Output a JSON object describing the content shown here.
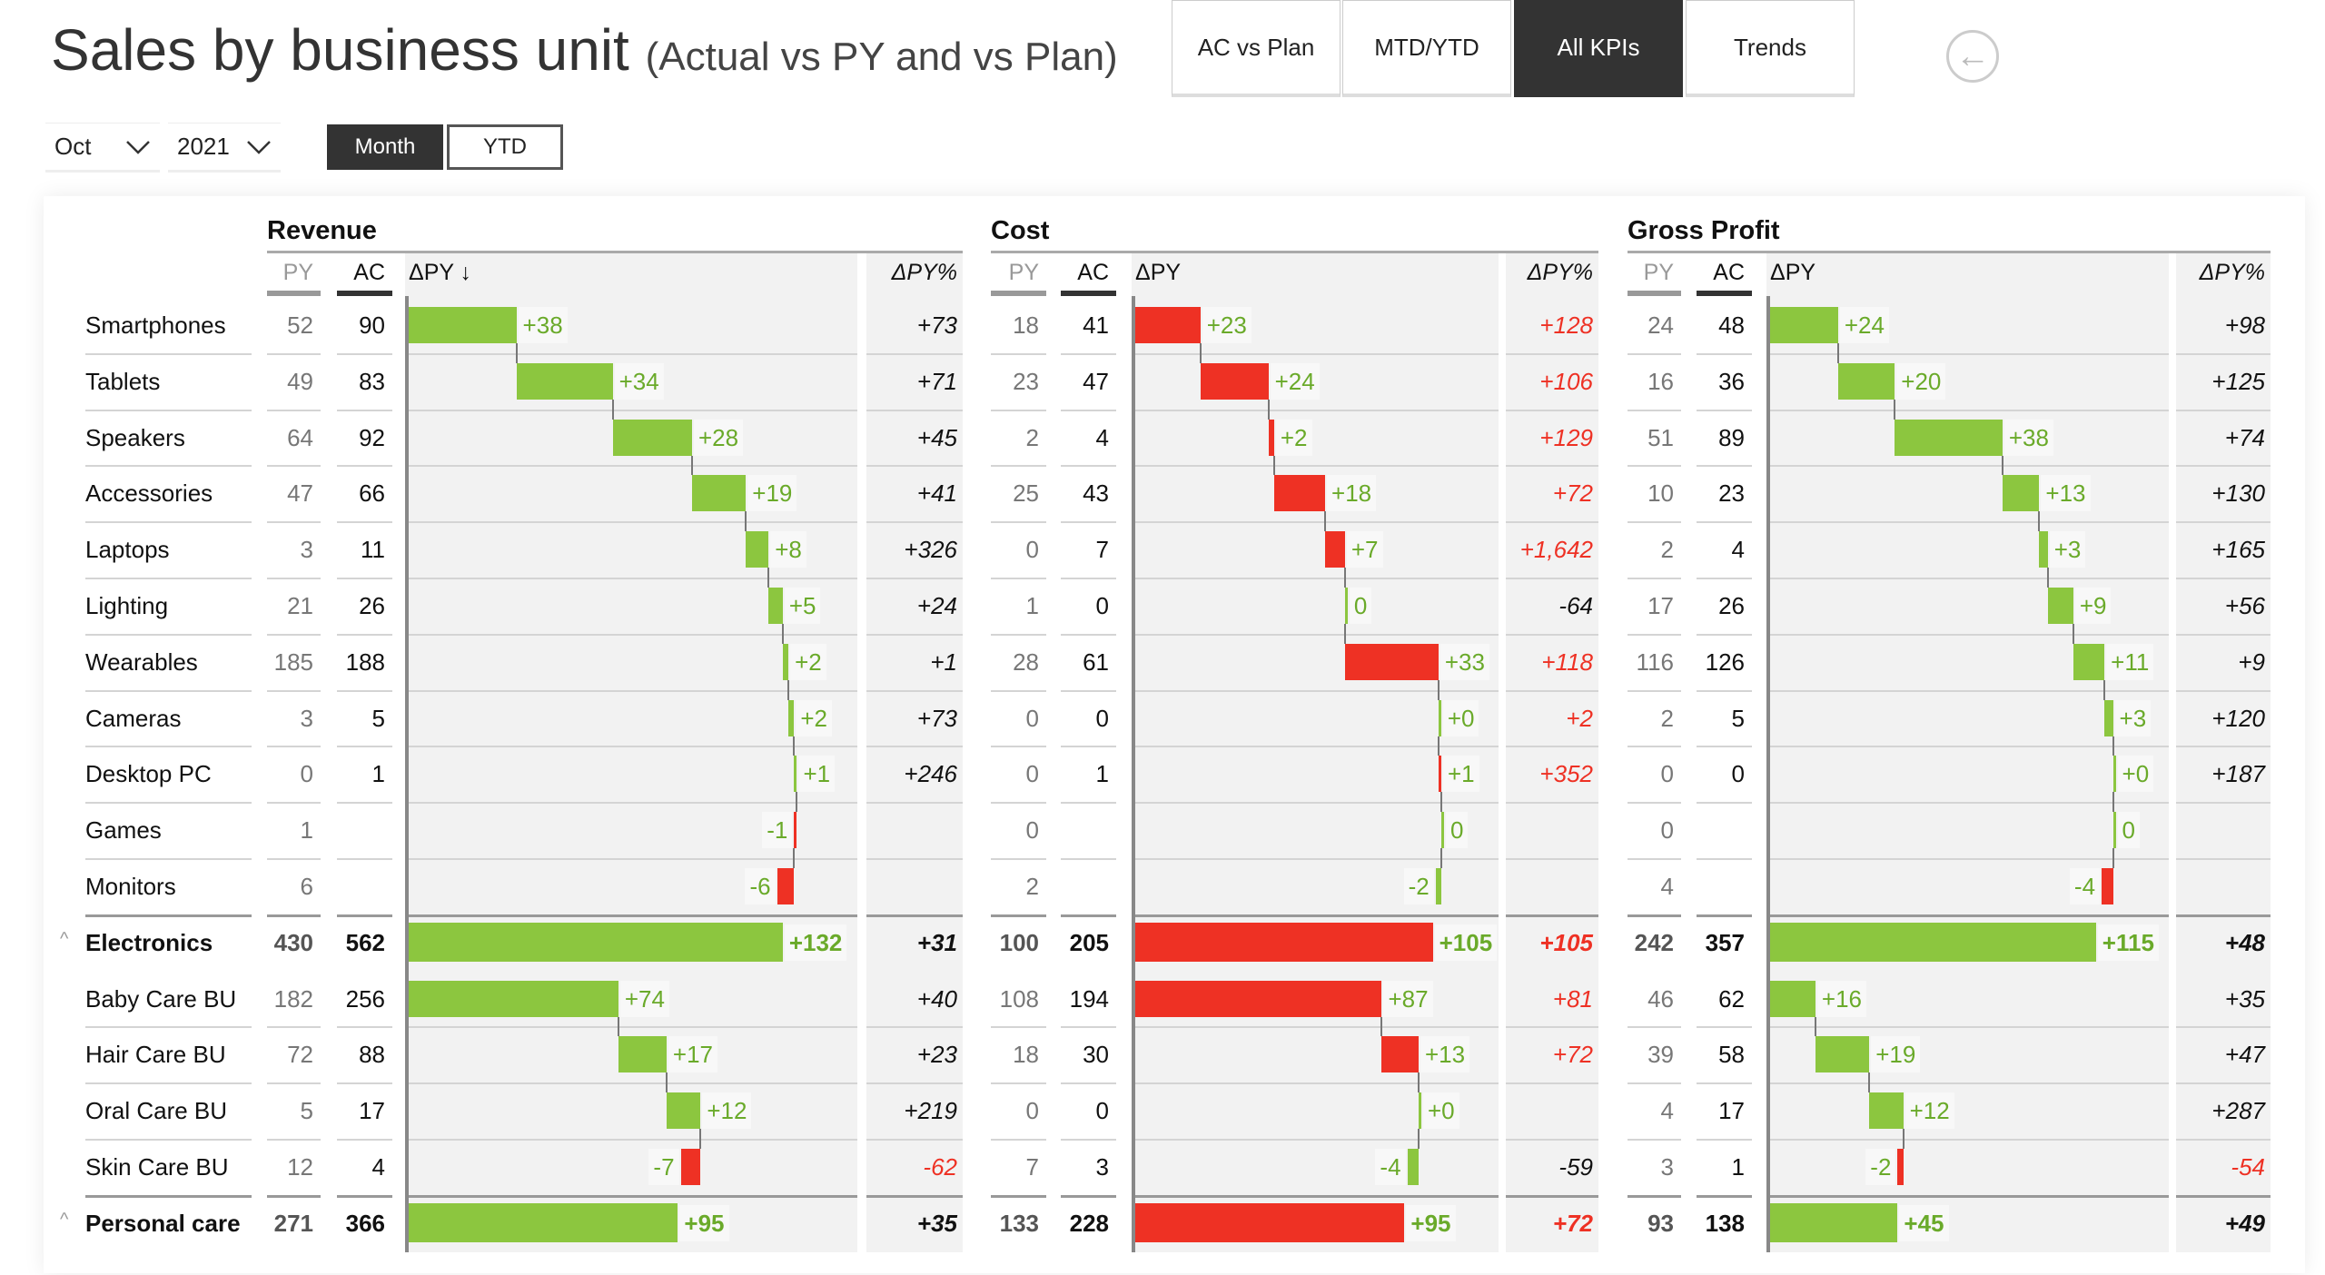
{
  "header": {
    "title": "Sales by business unit",
    "subtitle": "(Actual vs PY and vs Plan)"
  },
  "tabs": [
    {
      "label": "AC vs Plan",
      "active": false
    },
    {
      "label": "MTD/YTD",
      "active": false
    },
    {
      "label": "All KPIs",
      "active": true
    },
    {
      "label": "Trends",
      "active": false
    }
  ],
  "back_icon": "arrow-left-circle-icon",
  "filters": {
    "month": "Oct",
    "year": "2021",
    "period_toggle": [
      {
        "label": "Month",
        "active": true
      },
      {
        "label": "YTD",
        "active": false
      }
    ]
  },
  "colors": {
    "good": "#8cc63f",
    "bad": "#ee3124",
    "label_green": "#6aaa2a",
    "bad_text": "#ee3124"
  },
  "rows": [
    {
      "label": "Smartphones"
    },
    {
      "label": "Tablets"
    },
    {
      "label": "Speakers"
    },
    {
      "label": "Accessories"
    },
    {
      "label": "Laptops"
    },
    {
      "label": "Lighting"
    },
    {
      "label": "Wearables"
    },
    {
      "label": "Cameras"
    },
    {
      "label": "Desktop PC"
    },
    {
      "label": "Games"
    },
    {
      "label": "Monitors"
    },
    {
      "label": "Electronics",
      "total": true,
      "collapse_icon": "chevron-up-icon"
    },
    {
      "label": "Baby Care BU"
    },
    {
      "label": "Hair Care BU"
    },
    {
      "label": "Oral Care BU"
    },
    {
      "label": "Skin Care BU"
    },
    {
      "label": "Personal care",
      "total": true,
      "collapse_icon": "chevron-up-icon"
    }
  ],
  "sections": [
    {
      "title": "Revenue",
      "inverse": false,
      "cols": {
        "py": "PY",
        "ac": "AC",
        "d": "ΔPY ↓",
        "pct": "ΔPY%"
      },
      "values": [
        {
          "py": "52",
          "ac": "90",
          "d": "+38",
          "pct": "+73"
        },
        {
          "py": "49",
          "ac": "83",
          "d": "+34",
          "pct": "+71"
        },
        {
          "py": "64",
          "ac": "92",
          "d": "+28",
          "pct": "+45"
        },
        {
          "py": "47",
          "ac": "66",
          "d": "+19",
          "pct": "+41"
        },
        {
          "py": "3",
          "ac": "11",
          "d": "+8",
          "pct": "+326"
        },
        {
          "py": "21",
          "ac": "26",
          "d": "+5",
          "pct": "+24"
        },
        {
          "py": "185",
          "ac": "188",
          "d": "+2",
          "pct": "+1"
        },
        {
          "py": "3",
          "ac": "5",
          "d": "+2",
          "pct": "+73"
        },
        {
          "py": "0",
          "ac": "1",
          "d": "+1",
          "pct": "+246"
        },
        {
          "py": "1",
          "ac": "",
          "d": "-1",
          "pct": ""
        },
        {
          "py": "6",
          "ac": "",
          "d": "-6",
          "pct": ""
        },
        {
          "py": "430",
          "ac": "562",
          "d": "+132",
          "pct": "+31"
        },
        {
          "py": "182",
          "ac": "256",
          "d": "+74",
          "pct": "+40"
        },
        {
          "py": "72",
          "ac": "88",
          "d": "+17",
          "pct": "+23"
        },
        {
          "py": "5",
          "ac": "17",
          "d": "+12",
          "pct": "+219"
        },
        {
          "py": "12",
          "ac": "4",
          "d": "-7",
          "pct": "-62"
        },
        {
          "py": "271",
          "ac": "366",
          "d": "+95",
          "pct": "+35"
        }
      ]
    },
    {
      "title": "Cost",
      "inverse": true,
      "cols": {
        "py": "PY",
        "ac": "AC",
        "d": "ΔPY",
        "pct": "ΔPY%"
      },
      "values": [
        {
          "py": "18",
          "ac": "41",
          "d": "+23",
          "pct": "+128"
        },
        {
          "py": "23",
          "ac": "47",
          "d": "+24",
          "pct": "+106"
        },
        {
          "py": "2",
          "ac": "4",
          "d": "+2",
          "pct": "+129"
        },
        {
          "py": "25",
          "ac": "43",
          "d": "+18",
          "pct": "+72"
        },
        {
          "py": "0",
          "ac": "7",
          "d": "+7",
          "pct": "+1,642"
        },
        {
          "py": "1",
          "ac": "0",
          "d": "0",
          "pct": "-64"
        },
        {
          "py": "28",
          "ac": "61",
          "d": "+33",
          "pct": "+118"
        },
        {
          "py": "0",
          "ac": "0",
          "d": "+0",
          "pct": "+2"
        },
        {
          "py": "0",
          "ac": "1",
          "d": "+1",
          "pct": "+352"
        },
        {
          "py": "0",
          "ac": "",
          "d": "0",
          "pct": ""
        },
        {
          "py": "2",
          "ac": "",
          "d": "-2",
          "pct": ""
        },
        {
          "py": "100",
          "ac": "205",
          "d": "+105",
          "pct": "+105"
        },
        {
          "py": "108",
          "ac": "194",
          "d": "+87",
          "pct": "+81"
        },
        {
          "py": "18",
          "ac": "30",
          "d": "+13",
          "pct": "+72"
        },
        {
          "py": "0",
          "ac": "0",
          "d": "+0",
          "pct": ""
        },
        {
          "py": "7",
          "ac": "3",
          "d": "-4",
          "pct": "-59"
        },
        {
          "py": "133",
          "ac": "228",
          "d": "+95",
          "pct": "+72"
        }
      ]
    },
    {
      "title": "Gross Profit",
      "inverse": false,
      "cols": {
        "py": "PY",
        "ac": "AC",
        "d": "ΔPY",
        "pct": "ΔPY%"
      },
      "values": [
        {
          "py": "24",
          "ac": "48",
          "d": "+24",
          "pct": "+98"
        },
        {
          "py": "16",
          "ac": "36",
          "d": "+20",
          "pct": "+125"
        },
        {
          "py": "51",
          "ac": "89",
          "d": "+38",
          "pct": "+74"
        },
        {
          "py": "10",
          "ac": "23",
          "d": "+13",
          "pct": "+130"
        },
        {
          "py": "2",
          "ac": "4",
          "d": "+3",
          "pct": "+165"
        },
        {
          "py": "17",
          "ac": "26",
          "d": "+9",
          "pct": "+56"
        },
        {
          "py": "116",
          "ac": "126",
          "d": "+11",
          "pct": "+9"
        },
        {
          "py": "2",
          "ac": "5",
          "d": "+3",
          "pct": "+120"
        },
        {
          "py": "0",
          "ac": "0",
          "d": "+0",
          "pct": "+187"
        },
        {
          "py": "0",
          "ac": "",
          "d": "0",
          "pct": ""
        },
        {
          "py": "4",
          "ac": "",
          "d": "-4",
          "pct": ""
        },
        {
          "py": "242",
          "ac": "357",
          "d": "+115",
          "pct": "+48"
        },
        {
          "py": "46",
          "ac": "62",
          "d": "+16",
          "pct": "+35"
        },
        {
          "py": "39",
          "ac": "58",
          "d": "+19",
          "pct": "+47"
        },
        {
          "py": "4",
          "ac": "17",
          "d": "+12",
          "pct": "+287"
        },
        {
          "py": "3",
          "ac": "1",
          "d": "-2",
          "pct": "-54"
        },
        {
          "py": "93",
          "ac": "138",
          "d": "+45",
          "pct": "+49"
        }
      ]
    }
  ]
}
